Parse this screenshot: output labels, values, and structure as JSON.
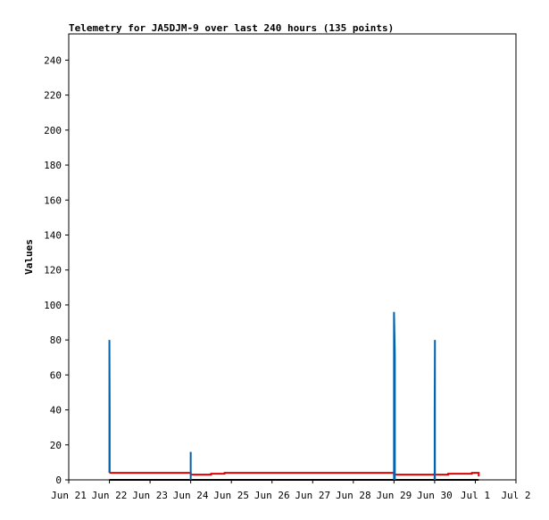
{
  "chart_data": {
    "type": "line",
    "title": "Telemetry for JA5DJM-9 over last 240 hours (135 points)",
    "y_label": "Values",
    "xlim": [
      "Jun 21",
      "Jul 2"
    ],
    "xticks": [
      "Jun 21",
      "Jun 22",
      "Jun 23",
      "Jun 24",
      "Jun 25",
      "Jun 26",
      "Jun 27",
      "Jun 28",
      "Jun 29",
      "Jun 30",
      "Jul 1",
      "Jul 2"
    ],
    "ylim": [
      0,
      255
    ],
    "yticks": [
      0,
      20,
      40,
      60,
      80,
      100,
      120,
      140,
      160,
      180,
      200,
      220,
      240
    ],
    "grid": false,
    "series": [
      {
        "color": "#e00000",
        "x": [
          "Jun 22 00:00",
          "Jun 24 00:00",
          "Jun 24 00:00",
          "Jun 24 12:00",
          "Jun 24 12:00",
          "Jun 24 20:00",
          "Jun 24 20:00",
          "Jun 29 00:00",
          "Jun 29 00:00",
          "Jun 30 08:00",
          "Jun 30 08:00",
          "Jun 30 22:00",
          "Jun 30 22:00",
          "Jul 1 02:00",
          "Jul 1 02:00"
        ],
        "values": [
          4,
          4,
          3,
          3,
          3.5,
          3.5,
          4,
          4,
          3,
          3,
          3.5,
          3.5,
          4,
          4,
          2
        ]
      },
      {
        "color": "#000000",
        "x": [
          "Jun 22 00:00",
          "Jun 30 00:00",
          "Jun 30 00:00",
          "Jun 30 00:00",
          "Jul 1 02:00"
        ],
        "values": [
          0,
          0,
          4,
          0,
          0
        ]
      },
      {
        "color": "#0063b1",
        "x": [
          "Jun 22 00:00",
          "Jun 22 00:00",
          "Jun 22 00:10",
          "Jun 22 00:10",
          "Jun 22 00:10",
          "Jun 24 00:00",
          "Jun 24 00:00",
          "Jun 24 00:00",
          "Jun 24 00:00",
          "Jun 29 00:00",
          "Jun 29 00:00",
          "Jun 29 00:30",
          "Jun 29 00:30",
          "Jun 29 00:30",
          "Jun 30 00:00",
          "Jun 30 00:00",
          "Jun 30 00:10",
          "Jun 30 00:10"
        ],
        "values": [
          4,
          80,
          40,
          4,
          null,
          0,
          16,
          0,
          null,
          0,
          96,
          72,
          0,
          null,
          0,
          40,
          80,
          0
        ]
      }
    ]
  }
}
